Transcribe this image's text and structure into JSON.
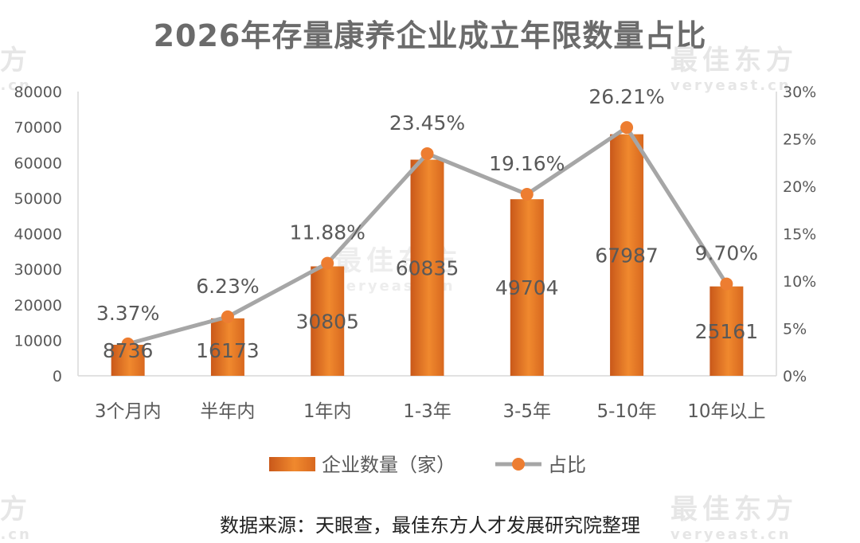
{
  "title": "2026年存量康养企业成立年限数量占比",
  "source": "数据来源：天眼查，最佳东方人才发展研究院整理",
  "watermark": {
    "brand": "最佳东方",
    "domain": "veryeast.cn"
  },
  "colors": {
    "bar_top": "#f0892e",
    "bar_bottom": "#c9581a",
    "line": "#a6a6a6",
    "marker": "#ed7d31",
    "axis": "#d9d9d9",
    "text": "#595959"
  },
  "chart_data": {
    "type": "bar",
    "title": "2026年存量康养企业成立年限数量占比",
    "categories": [
      "3个月内",
      "半年内",
      "1年内",
      "1-3年",
      "3-5年",
      "5-10年",
      "10年以上"
    ],
    "series": [
      {
        "name": "企业数量（家）",
        "type": "bar",
        "axis": "left",
        "values": [
          8736,
          16173,
          30805,
          60835,
          49704,
          67987,
          25161
        ],
        "labels": [
          "8736",
          "16173",
          "30805",
          "60835",
          "49704",
          "67987",
          "25161"
        ]
      },
      {
        "name": "占比",
        "type": "line",
        "axis": "right",
        "values": [
          3.37,
          6.23,
          11.88,
          23.45,
          19.16,
          26.21,
          9.7
        ],
        "labels": [
          "3.37%",
          "6.23%",
          "11.88%",
          "23.45%",
          "19.16%",
          "26.21%",
          "9.70%"
        ]
      }
    ],
    "y_left": {
      "min": 0,
      "max": 80000,
      "ticks": [
        "0",
        "10000",
        "20000",
        "30000",
        "40000",
        "50000",
        "60000",
        "70000",
        "80000"
      ]
    },
    "y_right": {
      "min": 0,
      "max": 30,
      "ticks": [
        "0%",
        "5%",
        "10%",
        "15%",
        "20%",
        "25%",
        "30%"
      ]
    },
    "grid": false,
    "legend": "bottom"
  }
}
